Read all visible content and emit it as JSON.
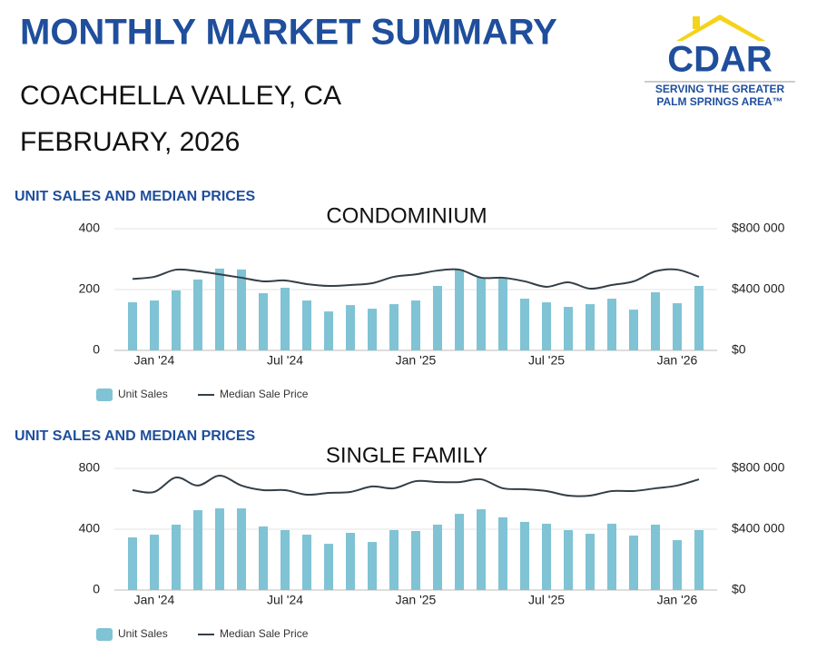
{
  "header": {
    "title": "MONTHLY MARKET SUMMARY",
    "region": "COACHELLA VALLEY, CA",
    "period": "FEBRUARY, 2026"
  },
  "logo": {
    "name": "CDAR",
    "line1": "SERVING THE GREATER",
    "line2": "PALM SPRINGS AREA™"
  },
  "chart_data": [
    {
      "type": "combo",
      "subtitle": "UNIT SALES AND MEDIAN PRICES",
      "title": "CONDOMINIUM",
      "categories": [
        null,
        "Jan '24",
        null,
        null,
        null,
        null,
        null,
        "Jul '24",
        null,
        null,
        null,
        null,
        null,
        "Jan '25",
        null,
        null,
        null,
        null,
        null,
        "Jul '25",
        null,
        null,
        null,
        null,
        null,
        "Jan '26",
        null
      ],
      "series": [
        {
          "name": "Unit Sales",
          "color": "#7fc3d4",
          "values": [
            158,
            164,
            197,
            233,
            269,
            266,
            188,
            206,
            164,
            128,
            149,
            137,
            152,
            164,
            212,
            266,
            239,
            239,
            170,
            158,
            143,
            152,
            170,
            134,
            191,
            155,
            212
          ]
        },
        {
          "name": "Median Sale Price",
          "color": "#333f48",
          "axis": "y2",
          "values": [
            470000,
            484000,
            531000,
            520000,
            500000,
            478000,
            454000,
            460000,
            436000,
            424000,
            430000,
            442000,
            484000,
            500000,
            525000,
            531000,
            478000,
            478000,
            454000,
            418000,
            448000,
            406000,
            430000,
            454000,
            520000,
            531000,
            484000
          ]
        }
      ],
      "ylim": [
        0,
        400
      ],
      "yticks": [
        0,
        200,
        400
      ],
      "y2lim": [
        0,
        800000
      ],
      "y2ticks": [
        {
          "value": 0,
          "label": "$0"
        },
        {
          "value": 400000,
          "label": "$400 000"
        },
        {
          "value": 800000,
          "label": "$800 000"
        }
      ],
      "grid": true
    },
    {
      "type": "combo",
      "subtitle": "UNIT SALES AND MEDIAN PRICES",
      "title": "SINGLE FAMILY",
      "categories": [
        null,
        "Jan '24",
        null,
        null,
        null,
        null,
        null,
        "Jul '24",
        null,
        null,
        null,
        null,
        null,
        "Jan '25",
        null,
        null,
        null,
        null,
        null,
        "Jul '25",
        null,
        null,
        null,
        null,
        null,
        "Jan '26",
        null
      ],
      "series": [
        {
          "name": "Unit Sales",
          "color": "#7fc3d4",
          "values": [
            346,
            364,
            430,
            525,
            537,
            537,
            418,
            394,
            364,
            304,
            376,
            316,
            394,
            388,
            430,
            501,
            531,
            478,
            448,
            436,
            394,
            370,
            436,
            358,
            430,
            328,
            394
          ]
        },
        {
          "name": "Median Sale Price",
          "color": "#333f48",
          "axis": "y2",
          "values": [
            657000,
            645000,
            740000,
            687000,
            752000,
            687000,
            657000,
            657000,
            627000,
            639000,
            645000,
            681000,
            669000,
            716000,
            710000,
            710000,
            728000,
            669000,
            663000,
            651000,
            621000,
            621000,
            651000,
            651000,
            669000,
            687000,
            728000
          ]
        }
      ],
      "ylim": [
        0,
        800
      ],
      "yticks": [
        0,
        400,
        800
      ],
      "y2lim": [
        0,
        800000
      ],
      "y2ticks": [
        {
          "value": 0,
          "label": "$0"
        },
        {
          "value": 400000,
          "label": "$400 000"
        },
        {
          "value": 800000,
          "label": "$800 000"
        }
      ],
      "grid": true
    }
  ]
}
